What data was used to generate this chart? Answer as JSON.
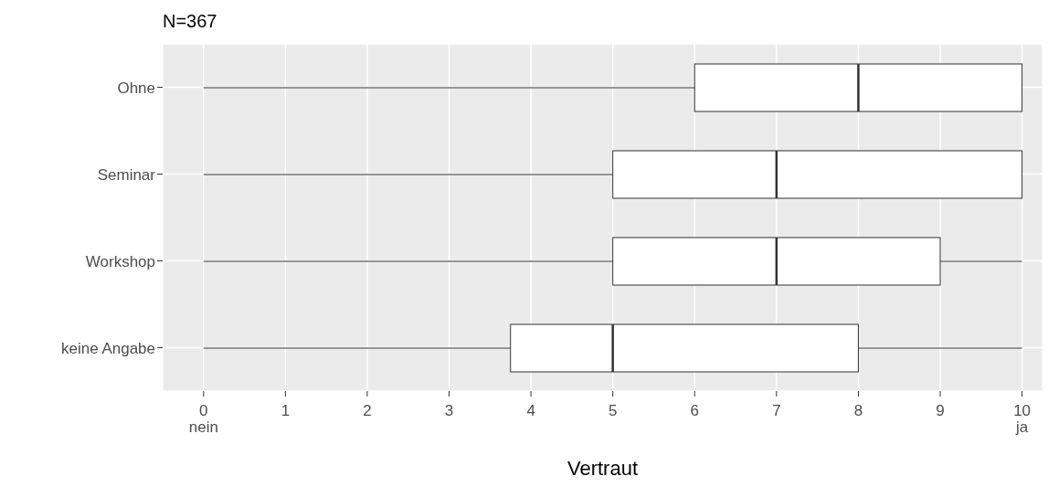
{
  "chart_data": {
    "type": "box",
    "orientation": "horizontal",
    "title": "N=367",
    "xlabel": "Vertraut",
    "categories": [
      "Ohne",
      "Seminar",
      "Workshop",
      "keine Angabe"
    ],
    "boxes": [
      {
        "low": 0,
        "q1": 6,
        "median": 8,
        "q3": 10,
        "high": 10
      },
      {
        "low": 0,
        "q1": 5,
        "median": 7,
        "q3": 10,
        "high": 10
      },
      {
        "low": 0,
        "q1": 5,
        "median": 7,
        "q3": 9,
        "high": 10
      },
      {
        "low": 0,
        "q1": 3.75,
        "median": 5,
        "q3": 8,
        "high": 10
      }
    ],
    "xlim": [
      -0.5,
      10.25
    ],
    "xticks": [
      {
        "value": 0,
        "label": "0\nnein"
      },
      1,
      2,
      3,
      4,
      5,
      6,
      7,
      8,
      9,
      {
        "value": 10,
        "label": "10\nja"
      }
    ],
    "grid": true,
    "legend": false
  }
}
